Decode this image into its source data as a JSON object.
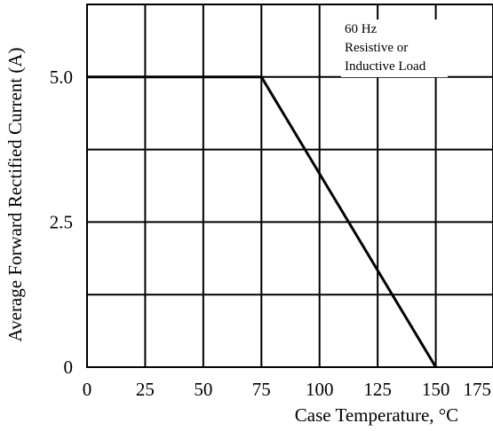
{
  "chart_data": {
    "type": "line",
    "title": "",
    "xlabel": "Case  Temperature, °C",
    "ylabel": "Average Forward Rectified Current (A)",
    "xlim": [
      0,
      175
    ],
    "ylim": [
      0,
      6.25
    ],
    "x_ticks": [
      0,
      25,
      50,
      75,
      100,
      125,
      150,
      175
    ],
    "x_tick_labels": [
      "0",
      "25",
      "50",
      "75",
      "100",
      "125",
      "150",
      "175"
    ],
    "y_ticks": [
      0,
      2.5,
      5.0
    ],
    "y_tick_labels": [
      "0",
      "2.5",
      "5.0"
    ],
    "grid": true,
    "series": [
      {
        "x": [
          0,
          75,
          150
        ],
        "y": [
          5.0,
          5.0,
          0
        ]
      }
    ],
    "annotation": {
      "lines": [
        "60 Hz",
        "Resistive or",
        "Inductive Load"
      ]
    },
    "colors": {
      "line": "#000000",
      "grid": "#000000",
      "background": "#ffffff"
    }
  }
}
